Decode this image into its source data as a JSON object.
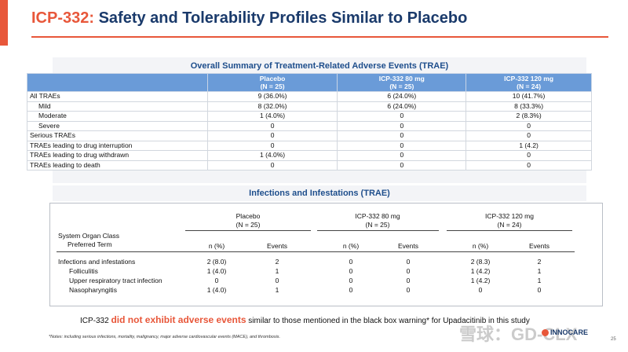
{
  "title": {
    "highlight": "ICP-332:",
    "rest": " Safety and Tolerability Profiles Similar to Placebo"
  },
  "trae": {
    "section_title": "Overall Summary of Treatment-Related  Adverse Events (TRAE)",
    "columns": [
      {
        "name": "Placebo",
        "n": "(N = 25)"
      },
      {
        "name": "ICP-332 80 mg",
        "n": "(N = 25)"
      },
      {
        "name": "ICP-332 120 mg",
        "n": "(N = 24)"
      }
    ],
    "rows": [
      {
        "label": "All TRAEs",
        "indent": false,
        "values": [
          "9 (36.0%)",
          "6 (24.0%)",
          "10 (41.7%)"
        ]
      },
      {
        "label": "Mild",
        "indent": true,
        "values": [
          "8 (32.0%)",
          "6 (24.0%)",
          "8 (33.3%)"
        ]
      },
      {
        "label": "Moderate",
        "indent": true,
        "values": [
          "1 (4.0%)",
          "0",
          "2 (8.3%)"
        ]
      },
      {
        "label": "Severe",
        "indent": true,
        "values": [
          "0",
          "0",
          "0"
        ]
      },
      {
        "label": "Serious TRAEs",
        "indent": false,
        "values": [
          "0",
          "0",
          "0"
        ]
      },
      {
        "label": "TRAEs leading to drug interruption",
        "indent": false,
        "values": [
          "0",
          "0",
          "1 (4.2)"
        ]
      },
      {
        "label": "TRAEs leading to drug withdrawn",
        "indent": false,
        "values": [
          "1 (4.0%)",
          "0",
          "0"
        ]
      },
      {
        "label": "TRAEs leading to death",
        "indent": false,
        "values": [
          "0",
          "0",
          "0"
        ]
      }
    ]
  },
  "infections": {
    "section_title": "Infections and Infestations (TRAE)",
    "groups": [
      {
        "name": "Placebo",
        "n": "(N = 25)"
      },
      {
        "name": "ICP-332 80 mg",
        "n": "(N = 25)"
      },
      {
        "name": "ICP-332 120 mg",
        "n": "(N = 24)"
      }
    ],
    "soc_label": "System Organ Class",
    "pt_label": "Preferred Term",
    "sub_n": "n (%)",
    "sub_events": "Events",
    "rows": [
      {
        "label": "Infections and infestations",
        "indent": false,
        "values": [
          "2 (8.0)",
          "2",
          "0",
          "0",
          "2 (8.3)",
          "2"
        ]
      },
      {
        "label": "Folliculitis",
        "indent": true,
        "values": [
          "1 (4.0)",
          "1",
          "0",
          "0",
          "1 (4.2)",
          "1"
        ]
      },
      {
        "label": "Upper respiratory tract infection",
        "indent": true,
        "values": [
          "0",
          "0",
          "0",
          "0",
          "1 (4.2)",
          "1"
        ]
      },
      {
        "label": "Nasopharyngitis",
        "indent": true,
        "values": [
          "1 (4.0)",
          "1",
          "0",
          "0",
          "0",
          "0"
        ]
      }
    ]
  },
  "footer": {
    "pre": "ICP-332 ",
    "highlight": "did not exhibit adverse events",
    "post": " similar to those mentioned in the black box warning* for Upadacitinib in this study"
  },
  "footnote": "*Notes: including serious infections, mortality, malignancy, major adverse cardiovascular events (MACE), and thrombosis.",
  "page_number": "25",
  "logo_text": "INNOCARE",
  "watermark_text": "雪球：GD-CLX",
  "colors": {
    "accent": "#e8573a",
    "title_blue": "#1a3a6b",
    "header_blue": "#6a9bd8"
  }
}
